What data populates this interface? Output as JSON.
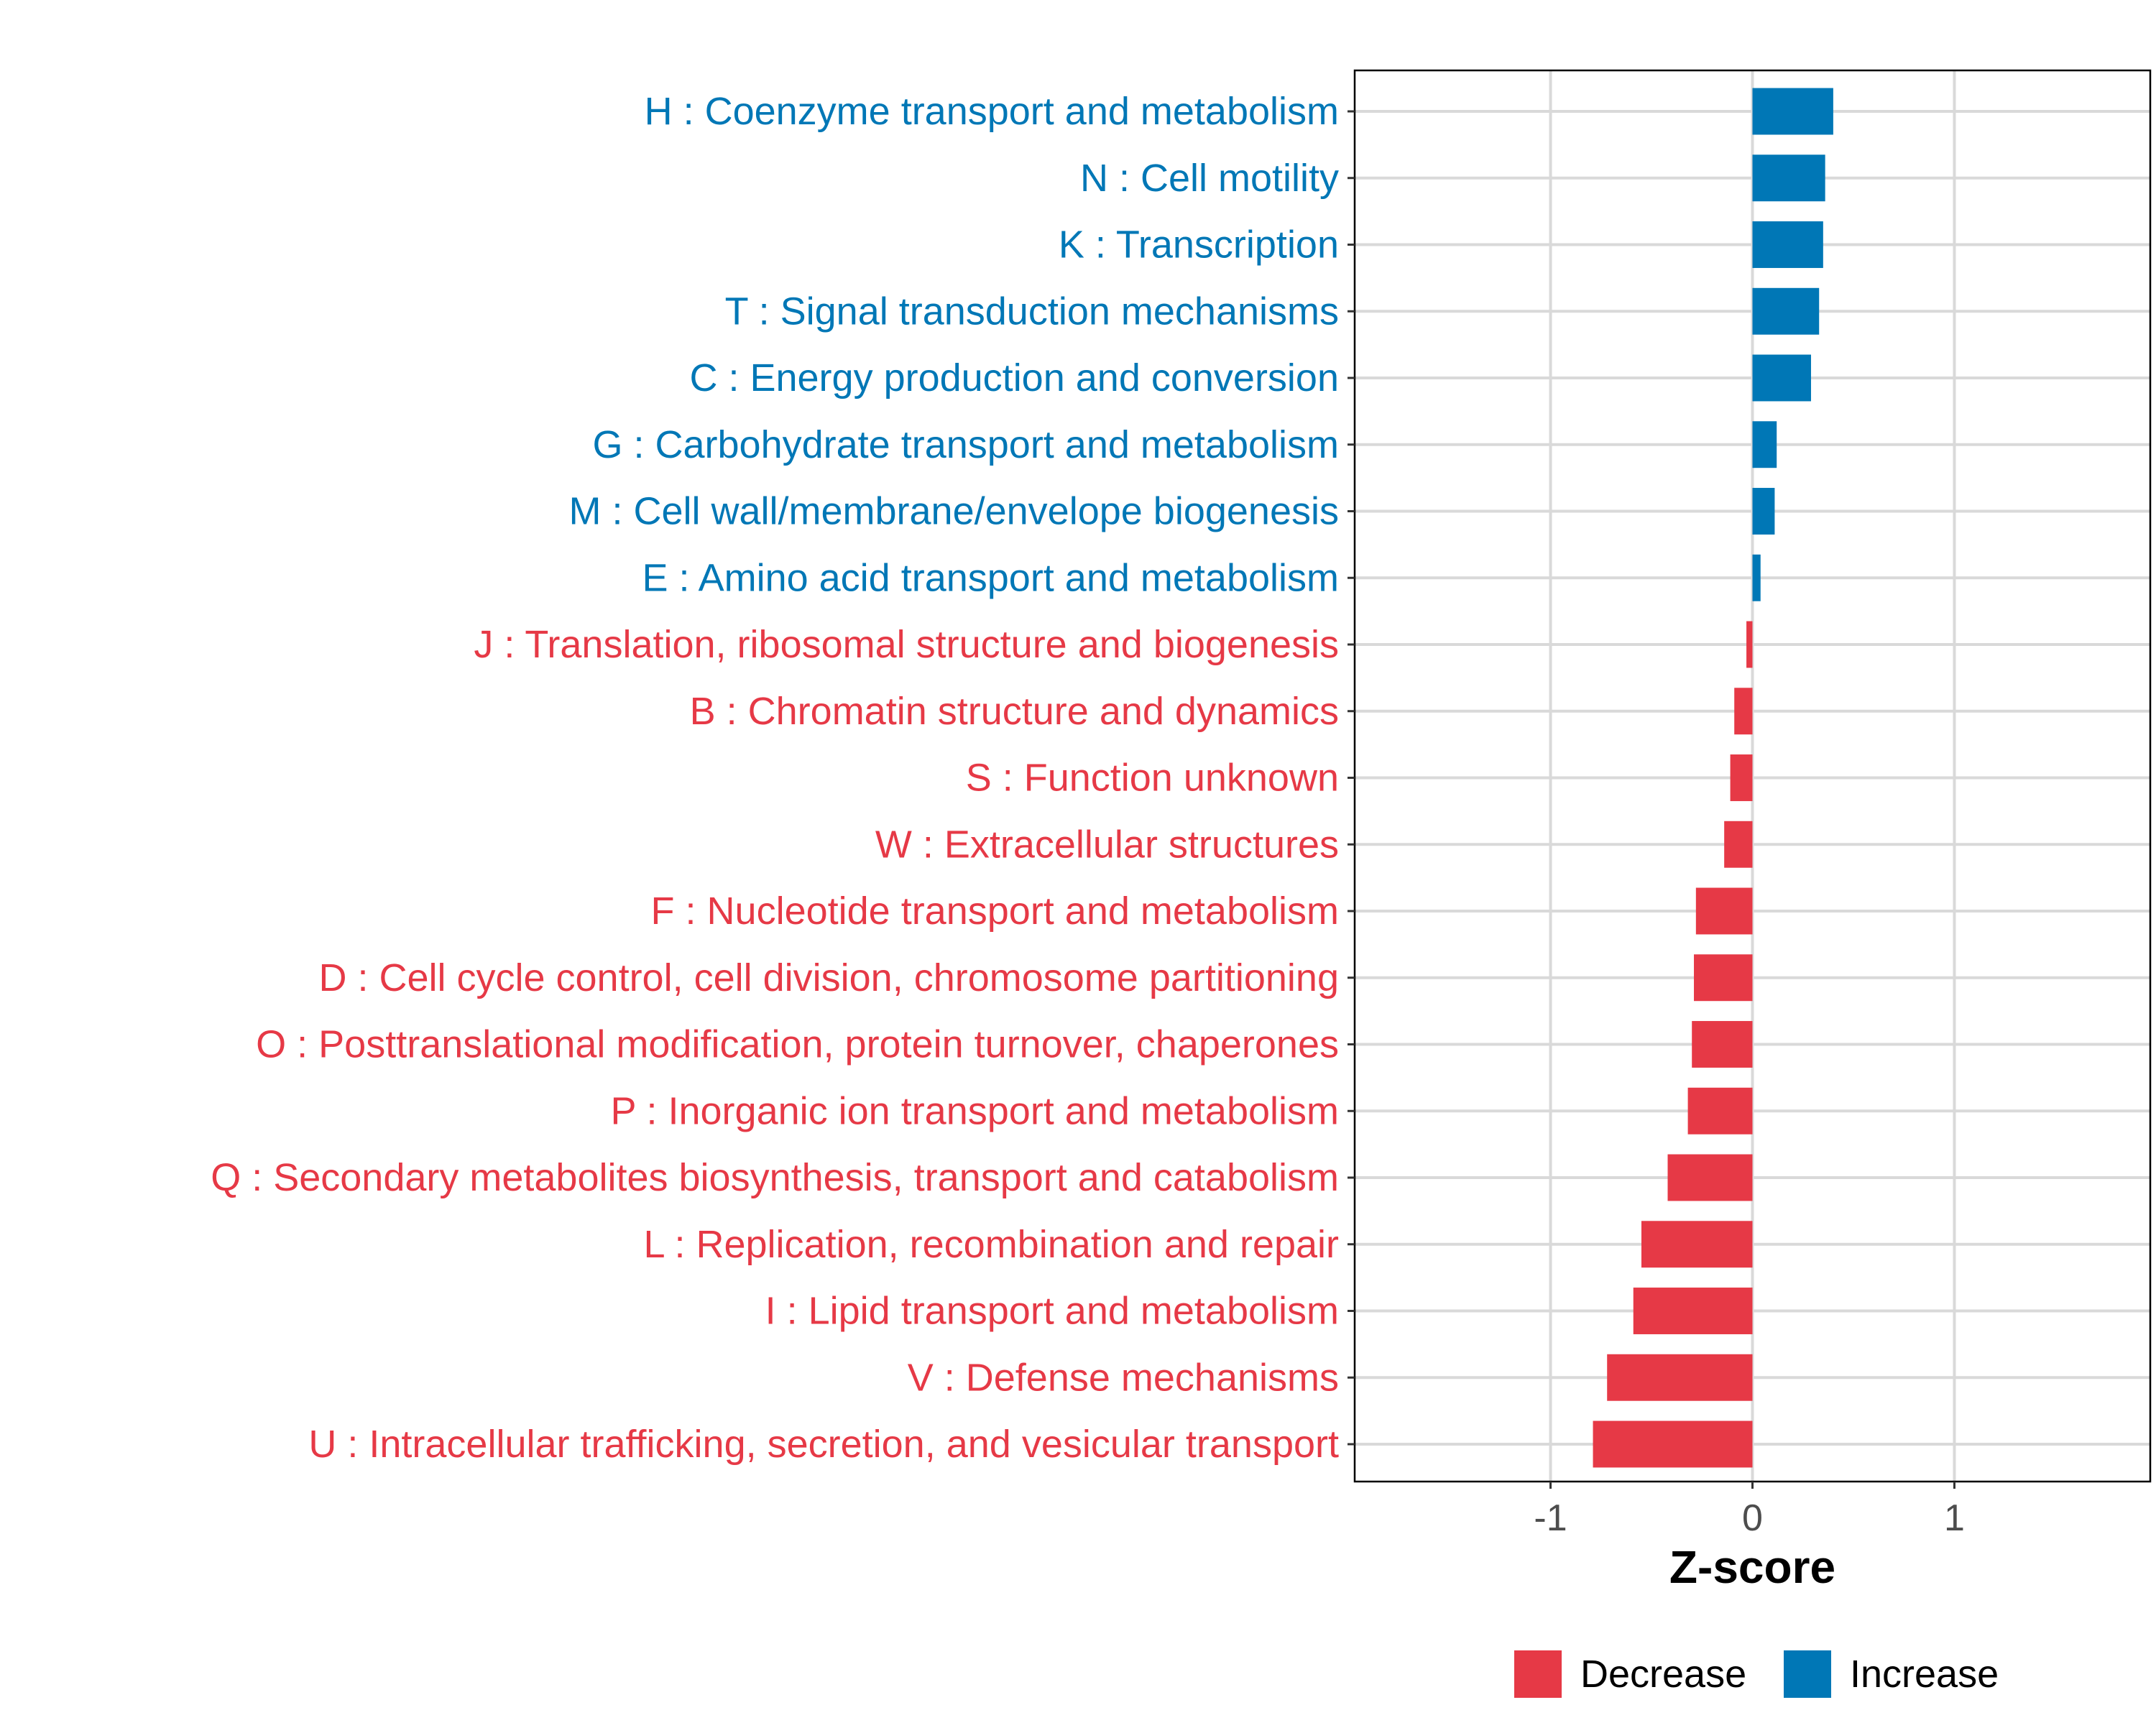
{
  "chart_data": {
    "type": "bar",
    "orientation": "horizontal",
    "xlabel": "Z-score",
    "ylabel": "",
    "xlim": [
      -1.97,
      1.97
    ],
    "xticks": [
      -1,
      0,
      1
    ],
    "xtick_labels": [
      "-1",
      "0",
      "1"
    ],
    "grid": true,
    "legend_position": "bottom",
    "categories": [
      "H : Coenzyme transport and metabolism",
      "N : Cell motility",
      "K : Transcription",
      "T : Signal transduction mechanisms",
      "C : Energy production and conversion",
      "G : Carbohydrate transport and metabolism",
      "M : Cell wall/membrane/envelope biogenesis",
      "E : Amino acid transport and metabolism",
      "J : Translation, ribosomal structure and biogenesis",
      "B : Chromatin structure and dynamics",
      "S : Function unknown",
      "W : Extracellular structures",
      "F : Nucleotide transport and metabolism",
      "D : Cell cycle control, cell division, chromosome partitioning",
      "O : Posttranslational modification, protein turnover, chaperones",
      "P : Inorganic ion transport and metabolism",
      "Q : Secondary metabolites biosynthesis, transport and catabolism",
      "L : Replication, recombination and repair",
      "I : Lipid transport and metabolism",
      "V : Defense mechanisms",
      "U : Intracellular trafficking, secretion, and vesicular transport"
    ],
    "values": [
      0.4,
      0.36,
      0.35,
      0.33,
      0.29,
      0.12,
      0.11,
      0.04,
      -0.03,
      -0.09,
      -0.11,
      -0.14,
      -0.28,
      -0.29,
      -0.3,
      -0.32,
      -0.42,
      -0.55,
      -0.59,
      -0.72,
      -0.79
    ],
    "groups": [
      "Increase",
      "Increase",
      "Increase",
      "Increase",
      "Increase",
      "Increase",
      "Increase",
      "Increase",
      "Decrease",
      "Decrease",
      "Decrease",
      "Decrease",
      "Decrease",
      "Decrease",
      "Decrease",
      "Decrease",
      "Decrease",
      "Decrease",
      "Decrease",
      "Decrease",
      "Decrease"
    ],
    "legend": [
      {
        "name": "Decrease",
        "color": "#E63946"
      },
      {
        "name": "Increase",
        "color": "#0077B6"
      }
    ],
    "colors": {
      "Decrease": "#E63946",
      "Increase": "#0077B6"
    }
  }
}
